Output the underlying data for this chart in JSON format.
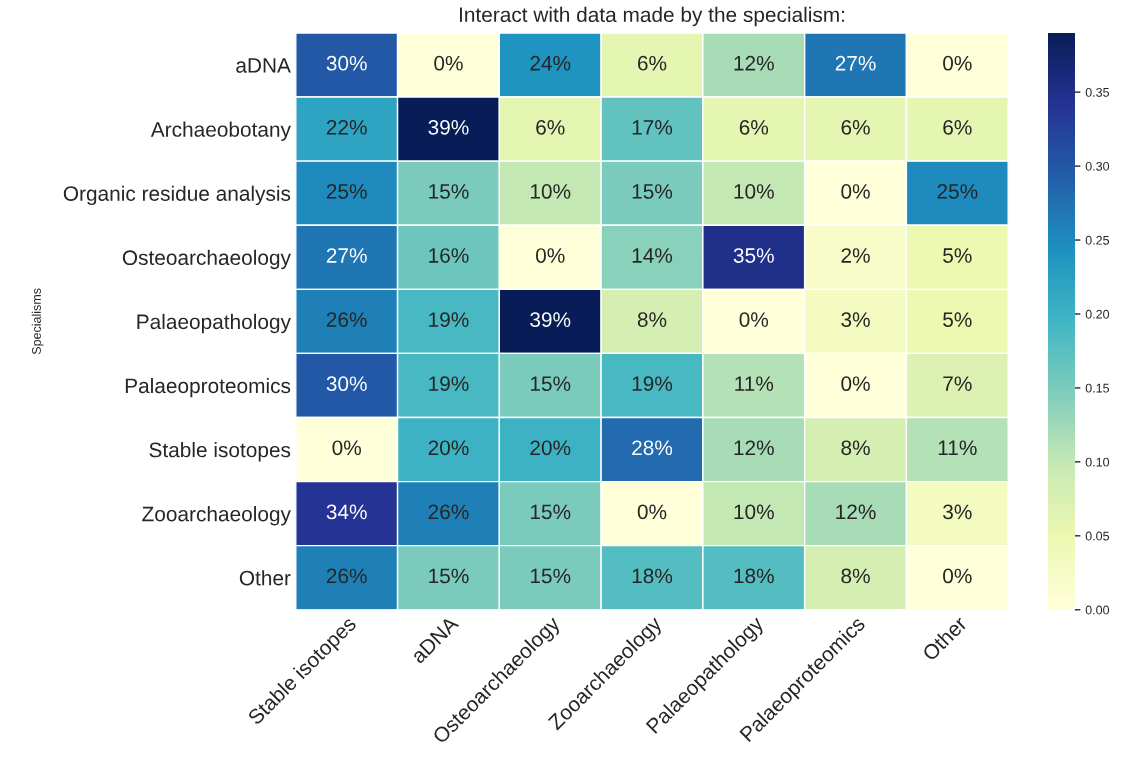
{
  "chart_data": {
    "type": "heatmap",
    "title": "Interact with data made by the specialism:",
    "ylabel": "Specialisms",
    "categories": [
      "Stable isotopes",
      "aDNA",
      "Osteoarchaeology",
      "Zooarchaeology",
      "Palaeopathology",
      "Palaeoproteomics",
      "Other"
    ],
    "y_categories": [
      "aDNA",
      "Archaeobotany",
      "Organic residue analysis",
      "Osteoarchaeology",
      "Palaeopathology",
      "Palaeoproteomics",
      "Stable isotopes",
      "Zooarchaeology",
      "Other"
    ],
    "cells": [
      [
        0.3,
        0.0,
        0.24,
        0.06,
        0.12,
        0.27,
        0.0
      ],
      [
        0.22,
        0.39,
        0.06,
        0.17,
        0.06,
        0.06,
        0.06
      ],
      [
        0.25,
        0.15,
        0.1,
        0.15,
        0.1,
        0.0,
        0.25
      ],
      [
        0.27,
        0.16,
        0.0,
        0.14,
        0.35,
        0.02,
        0.05
      ],
      [
        0.26,
        0.19,
        0.39,
        0.08,
        0.0,
        0.03,
        0.05
      ],
      [
        0.3,
        0.19,
        0.15,
        0.19,
        0.11,
        0.0,
        0.07
      ],
      [
        0.0,
        0.2,
        0.2,
        0.28,
        0.12,
        0.08,
        0.11
      ],
      [
        0.34,
        0.26,
        0.15,
        0.0,
        0.1,
        0.12,
        0.03
      ],
      [
        0.26,
        0.15,
        0.15,
        0.18,
        0.18,
        0.08,
        0.0
      ]
    ],
    "cell_labels": [
      [
        "30%",
        "0%",
        "24%",
        "6%",
        "12%",
        "27%",
        "0%"
      ],
      [
        "22%",
        "39%",
        "6%",
        "17%",
        "6%",
        "6%",
        "6%"
      ],
      [
        "25%",
        "15%",
        "10%",
        "15%",
        "10%",
        "0%",
        "25%"
      ],
      [
        "27%",
        "16%",
        "0%",
        "14%",
        "35%",
        "2%",
        "5%"
      ],
      [
        "26%",
        "19%",
        "39%",
        "8%",
        "0%",
        "3%",
        "5%"
      ],
      [
        "30%",
        "19%",
        "15%",
        "19%",
        "11%",
        "0%",
        "7%"
      ],
      [
        "0%",
        "20%",
        "20%",
        "28%",
        "12%",
        "8%",
        "11%"
      ],
      [
        "34%",
        "26%",
        "15%",
        "0%",
        "10%",
        "12%",
        "3%"
      ],
      [
        "26%",
        "15%",
        "15%",
        "18%",
        "18%",
        "8%",
        "0%"
      ]
    ],
    "clim": [
      0,
      0.39
    ],
    "cticks": [
      {
        "value": 0,
        "label": "0.00"
      },
      {
        "value": 0.05,
        "label": "0.05"
      },
      {
        "value": 0.1,
        "label": "0.10"
      },
      {
        "value": 0.15,
        "label": "0.15"
      },
      {
        "value": 0.2,
        "label": "0.20"
      },
      {
        "value": 0.25,
        "label": "0.25"
      },
      {
        "value": 0.3,
        "label": "0.30"
      },
      {
        "value": 0.35,
        "label": "0.35"
      }
    ]
  }
}
